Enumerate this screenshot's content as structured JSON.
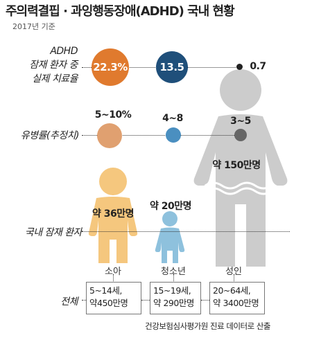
{
  "title": "주의력결핍 · 과잉행동장애(ADHD) 국내 현황",
  "subtitle": "2017년 기준",
  "rows": {
    "treatment_rate": [
      "ADHD",
      "잠재 환자 중",
      "실제 치료율"
    ],
    "prevalence": "유병률(추정치)",
    "domestic_patients": "국내 잠재 환자",
    "total": "전체"
  },
  "groups": [
    {
      "name": "소아",
      "treatment_rate": "22.3%",
      "prevalence": "5~10%",
      "patients": "약 36만명",
      "age_range": "5~14세,",
      "population": "약450만명",
      "color": "#f5c77e"
    },
    {
      "name": "청소년",
      "treatment_rate": "13.5",
      "prevalence": "4~8",
      "patients": "약 20만명",
      "age_range": "15~19세,",
      "population": "약 290만명",
      "color": "#8ec1dd"
    },
    {
      "name": "성인",
      "treatment_rate": "0.7",
      "prevalence": "3~5",
      "patients": "약 150만명",
      "age_range": "20~64세,",
      "population": "약 3400만명",
      "color": "#cccccc"
    }
  ],
  "circle_colors": {
    "child_rate": "#e07a2e",
    "teen_rate": "#1f4f7a",
    "adult_rate": "#222222",
    "child_prev": "#e0a070",
    "teen_prev": "#4a8fc0",
    "adult_prev": "#666666"
  },
  "source": "건강보험심사평가원 진료 데이터로 산출"
}
